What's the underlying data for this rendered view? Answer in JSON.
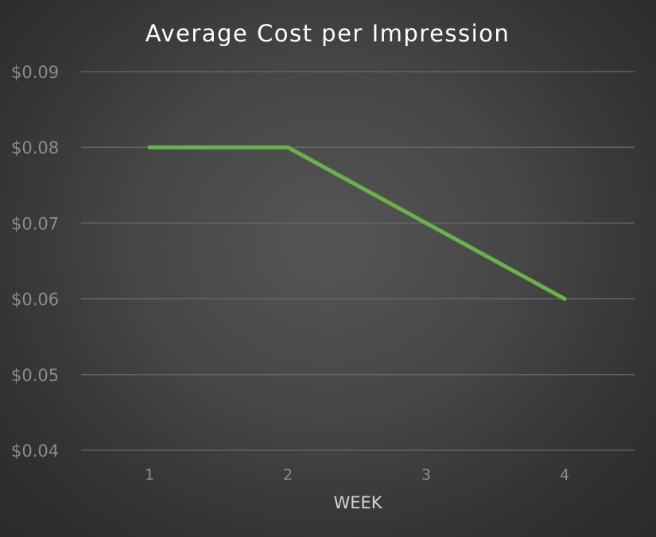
{
  "chart_data": {
    "type": "line",
    "title": "Average Cost per Impression",
    "xlabel": "WEEK",
    "ylabel": "",
    "categories": [
      "1",
      "2",
      "3",
      "4"
    ],
    "series": [
      {
        "values": [
          0.08,
          0.08,
          0.07,
          0.06
        ]
      }
    ],
    "ylim": [
      0.04,
      0.09
    ],
    "yticks": [
      0.09,
      0.08,
      0.07,
      0.06,
      0.05,
      0.04
    ],
    "ytick_labels": [
      "$0.09",
      "$0.08",
      "$0.07",
      "$0.06",
      "$0.05",
      "$0.04"
    ],
    "grid": true,
    "legend": "none",
    "colors": {
      "line": "#6ab04c",
      "grid": "#6a6a6a"
    }
  }
}
